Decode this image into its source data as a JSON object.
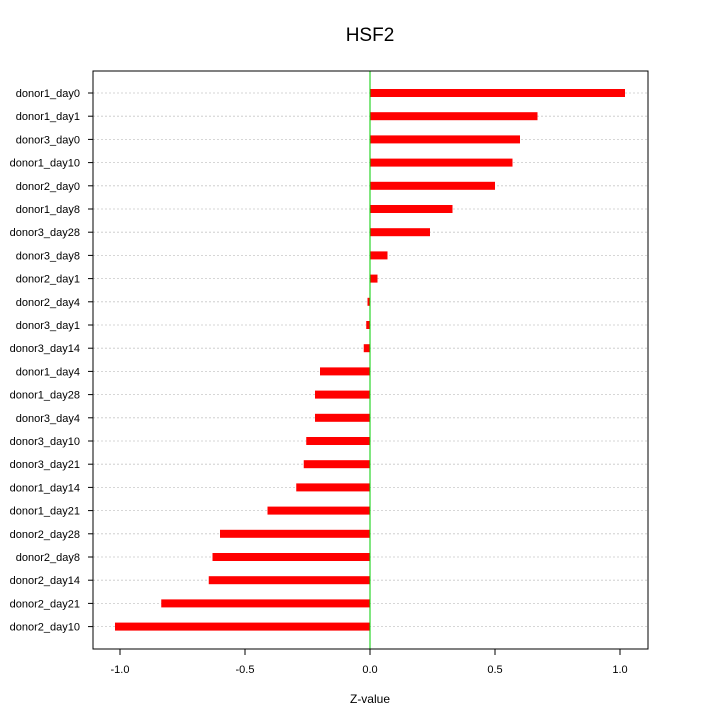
{
  "chart_data": {
    "type": "bar",
    "orientation": "horizontal",
    "title": "HSF2",
    "xlabel": "Z-value",
    "ylabel": "",
    "xlim": [
      -1.1,
      1.1
    ],
    "xticks": [
      -1.0,
      -0.5,
      0.0,
      0.5,
      1.0
    ],
    "xtick_labels": [
      "-1.0",
      "-0.5",
      "0.0",
      "0.5",
      "1.0"
    ],
    "grid": "horizontal dashed",
    "bar_color": "#ff0000",
    "zero_line_color": "#00cc00",
    "categories": [
      "donor1_day0",
      "donor1_day1",
      "donor3_day0",
      "donor1_day10",
      "donor2_day0",
      "donor1_day8",
      "donor3_day28",
      "donor3_day8",
      "donor2_day1",
      "donor2_day4",
      "donor3_day1",
      "donor3_day14",
      "donor1_day4",
      "donor1_day28",
      "donor3_day4",
      "donor3_day10",
      "donor3_day21",
      "donor1_day14",
      "donor1_day21",
      "donor2_day28",
      "donor2_day8",
      "donor2_day14",
      "donor2_day21",
      "donor2_day10"
    ],
    "values": [
      1.02,
      0.67,
      0.6,
      0.57,
      0.5,
      0.33,
      0.24,
      0.07,
      0.03,
      -0.01,
      -0.015,
      -0.025,
      -0.2,
      -0.22,
      -0.22,
      -0.255,
      -0.265,
      -0.295,
      -0.41,
      -0.6,
      -0.63,
      -0.645,
      -0.835,
      -1.02
    ]
  }
}
